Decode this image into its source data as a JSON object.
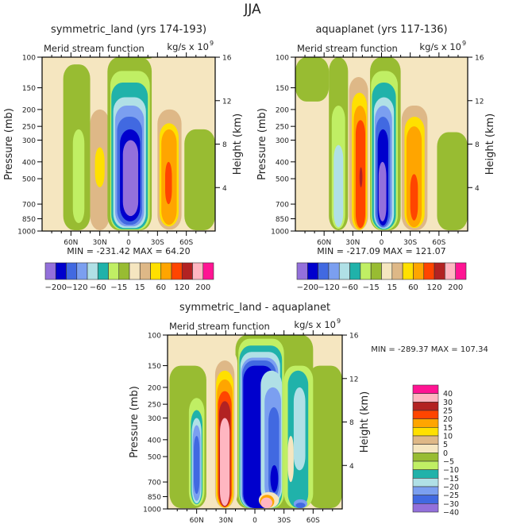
{
  "chart_data": [
    {
      "type": "heatmap",
      "panel": "top-left",
      "title": "symmetric_land (yrs 174-193)",
      "left_string": "Merid stream function",
      "right_string": "kg/s x 10",
      "right_string_exponent": "9",
      "ylabel": "Pressure (mb)",
      "ylabel_right": "Height (km)",
      "yticks": [
        "100",
        "150",
        "200",
        "250",
        "300",
        "400",
        "500",
        "700",
        "850",
        "1000"
      ],
      "yticks_right": [
        "16",
        "12",
        "8",
        "4"
      ],
      "xticks": [
        "60N",
        "30N",
        "0",
        "30S",
        "60S"
      ],
      "xlim": [
        90,
        -90
      ],
      "ylim": [
        1000,
        100
      ],
      "stats": "MIN = -231.42   MAX = 64.20",
      "levels": [
        -200,
        -160,
        -120,
        -90,
        -60,
        -30,
        -15,
        -5,
        5,
        15,
        30,
        60,
        90,
        120,
        160,
        200
      ],
      "labelbar_labels": [
        "-200",
        "-120",
        "-60",
        "-15",
        "15",
        "60",
        "120",
        "200"
      ],
      "cells": [
        {
          "lat": [
            68,
            40
          ],
          "p": [
            110,
            990
          ],
          "v": -5
        },
        {
          "lat": [
            58,
            46
          ],
          "p": [
            260,
            900
          ],
          "v": -15
        },
        {
          "lat": [
            40,
            20
          ],
          "p": [
            200,
            990
          ],
          "v": 15
        },
        {
          "lat": [
            35,
            25
          ],
          "p": [
            330,
            560
          ],
          "v": 30
        },
        {
          "lat": [
            -13,
            -24
          ],
          "p": [
            100,
            100
          ],
          "v": -5
        },
        {
          "lat": [
            22,
            -24
          ],
          "p": [
            100,
            990
          ],
          "v": -5
        },
        {
          "lat": [
            19,
            -22
          ],
          "p": [
            120,
            985
          ],
          "v": -15
        },
        {
          "lat": [
            18,
            -20
          ],
          "p": [
            140,
            975
          ],
          "v": -30
        },
        {
          "lat": [
            16,
            -18
          ],
          "p": [
            170,
            960
          ],
          "v": -60
        },
        {
          "lat": [
            14,
            -16
          ],
          "p": [
            190,
            940
          ],
          "v": -90
        },
        {
          "lat": [
            12,
            -14
          ],
          "p": [
            220,
            920
          ],
          "v": -120
        },
        {
          "lat": [
            9,
            -12
          ],
          "p": [
            260,
            880
          ],
          "v": -160
        },
        {
          "lat": [
            6,
            -10
          ],
          "p": [
            300,
            820
          ],
          "v": -200
        },
        {
          "lat": [
            -30,
            -55
          ],
          "p": [
            200,
            980
          ],
          "v": 15
        },
        {
          "lat": [
            -32,
            -52
          ],
          "p": [
            240,
            940
          ],
          "v": 30
        },
        {
          "lat": [
            -34,
            -50
          ],
          "p": [
            260,
            920
          ],
          "v": 60
        },
        {
          "lat": [
            -38,
            -45
          ],
          "p": [
            400,
            700
          ],
          "v": 90
        },
        {
          "lat": [
            -58,
            -90
          ],
          "p": [
            260,
            990
          ],
          "v": -5
        }
      ]
    },
    {
      "type": "heatmap",
      "panel": "top-right",
      "title": "aquaplanet (yrs 117-136)",
      "left_string": "Merid stream function",
      "right_string": "kg/s x 10",
      "right_string_exponent": "9",
      "ylabel": "Pressure (mb)",
      "ylabel_right": "Height (km)",
      "yticks": [
        "100",
        "150",
        "200",
        "250",
        "300",
        "400",
        "500",
        "700",
        "850",
        "1000"
      ],
      "yticks_right": [
        "16",
        "12",
        "8",
        "4"
      ],
      "xticks": [
        "60N",
        "30N",
        "0",
        "30S",
        "60S"
      ],
      "xlim": [
        90,
        -90
      ],
      "ylim": [
        1000,
        100
      ],
      "stats": "MIN = -217.09   MAX = 121.07",
      "levels": [
        -200,
        -160,
        -120,
        -90,
        -60,
        -30,
        -15,
        -5,
        5,
        15,
        30,
        60,
        90,
        120,
        160,
        200
      ],
      "labelbar_labels": [
        "-200",
        "-120",
        "-60",
        "-15",
        "15",
        "60",
        "120",
        "200"
      ],
      "cells": [
        {
          "lat": [
            90,
            55
          ],
          "p": [
            100,
            180
          ],
          "v": -5
        },
        {
          "lat": [
            55,
            35
          ],
          "p": [
            100,
            990
          ],
          "v": -5
        },
        {
          "lat": [
            52,
            38
          ],
          "p": [
            190,
            970
          ],
          "v": -15
        },
        {
          "lat": [
            50,
            40
          ],
          "p": [
            320,
            950
          ],
          "v": -60
        },
        {
          "lat": [
            34,
            14
          ],
          "p": [
            130,
            990
          ],
          "v": 15
        },
        {
          "lat": [
            31,
            15
          ],
          "p": [
            160,
            985
          ],
          "v": 30
        },
        {
          "lat": [
            29,
            16
          ],
          "p": [
            190,
            975
          ],
          "v": 60
        },
        {
          "lat": [
            27,
            17
          ],
          "p": [
            230,
            960
          ],
          "v": 90
        },
        {
          "lat": [
            23,
            20
          ],
          "p": [
            430,
            560
          ],
          "v": 120
        },
        {
          "lat": [
            12,
            -20
          ],
          "p": [
            100,
            990
          ],
          "v": -5
        },
        {
          "lat": [
            11,
            -17
          ],
          "p": [
            120,
            985
          ],
          "v": -15
        },
        {
          "lat": [
            10,
            -15
          ],
          "p": [
            140,
            980
          ],
          "v": -30
        },
        {
          "lat": [
            8,
            -13
          ],
          "p": [
            170,
            970
          ],
          "v": -60
        },
        {
          "lat": [
            7,
            -11
          ],
          "p": [
            190,
            960
          ],
          "v": -90
        },
        {
          "lat": [
            6,
            -9
          ],
          "p": [
            220,
            950
          ],
          "v": -120
        },
        {
          "lat": [
            4,
            -7
          ],
          "p": [
            260,
            930
          ],
          "v": -160
        },
        {
          "lat": [
            3,
            -5
          ],
          "p": [
            400,
            880
          ],
          "v": -200
        },
        {
          "lat": [
            -21,
            -48
          ],
          "p": [
            190,
            990
          ],
          "v": 15
        },
        {
          "lat": [
            -24,
            -45
          ],
          "p": [
            220,
            960
          ],
          "v": 30
        },
        {
          "lat": [
            -26,
            -42
          ],
          "p": [
            250,
            950
          ],
          "v": 60
        },
        {
          "lat": [
            -30,
            -38
          ],
          "p": [
            470,
            870
          ],
          "v": 90
        },
        {
          "lat": [
            -58,
            -90
          ],
          "p": [
            270,
            990
          ],
          "v": -5
        }
      ]
    },
    {
      "type": "heatmap",
      "panel": "bottom",
      "title": "symmetric_land - aquaplanet",
      "left_string": "Merid stream function",
      "right_string": "kg/s x 10",
      "right_string_exponent": "9",
      "ylabel": "Pressure (mb)",
      "ylabel_right": "Height (km)",
      "yticks": [
        "100",
        "150",
        "200",
        "250",
        "300",
        "400",
        "500",
        "700",
        "850",
        "1000"
      ],
      "yticks_right": [
        "16",
        "12",
        "8",
        "4"
      ],
      "xticks": [
        "60N",
        "30N",
        "0",
        "30S",
        "60S"
      ],
      "xlim": [
        90,
        -90
      ],
      "ylim": [
        1000,
        100
      ],
      "stats": "MIN = -289.37   MAX = 107.34",
      "levels": [
        -40,
        -30,
        -25,
        -20,
        -15,
        -10,
        -5,
        0,
        5,
        10,
        15,
        20,
        25,
        30,
        40
      ],
      "labelbar_labels": [
        "40",
        "30",
        "25",
        "20",
        "15",
        "10",
        "5",
        "0",
        "-5",
        "-10",
        "-15",
        "-20",
        "-25",
        "-30",
        "-40"
      ],
      "cells": [
        {
          "lat": [
            88,
            50
          ],
          "p": [
            150,
            990
          ],
          "v": -2
        },
        {
          "lat": [
            -55,
            -90
          ],
          "p": [
            150,
            990
          ],
          "v": -2
        },
        {
          "lat": [
            20,
            -60
          ],
          "p": [
            100,
            990
          ],
          "v": -2
        },
        {
          "lat": [
            68,
            52
          ],
          "p": [
            230,
            960
          ],
          "v": -7
        },
        {
          "lat": [
            66,
            54
          ],
          "p": [
            270,
            940
          ],
          "v": -12
        },
        {
          "lat": [
            65,
            55
          ],
          "p": [
            300,
            930
          ],
          "v": -17
        },
        {
          "lat": [
            64,
            56
          ],
          "p": [
            330,
            900
          ],
          "v": -22
        },
        {
          "lat": [
            63,
            57
          ],
          "p": [
            380,
            820
          ],
          "v": -27
        },
        {
          "lat": [
            46,
            18
          ],
          "p": [
            120,
            990
          ],
          "v": 2
        },
        {
          "lat": [
            41,
            21
          ],
          "p": [
            140,
            990
          ],
          "v": 7
        },
        {
          "lat": [
            40,
            22
          ],
          "p": [
            160,
            985
          ],
          "v": 12
        },
        {
          "lat": [
            39,
            23
          ],
          "p": [
            180,
            980
          ],
          "v": 17
        },
        {
          "lat": [
            38,
            24
          ],
          "p": [
            210,
            975
          ],
          "v": 22
        },
        {
          "lat": [
            37,
            25
          ],
          "p": [
            240,
            970
          ],
          "v": 27
        },
        {
          "lat": [
            36,
            26
          ],
          "p": [
            300,
            960
          ],
          "v": 35
        },
        {
          "lat": [
            17,
            -30
          ],
          "p": [
            105,
            990
          ],
          "v": -7
        },
        {
          "lat": [
            16,
            -28
          ],
          "p": [
            115,
            990
          ],
          "v": -12
        },
        {
          "lat": [
            15,
            -26
          ],
          "p": [
            125,
            990
          ],
          "v": -17
        },
        {
          "lat": [
            14,
            -24
          ],
          "p": [
            135,
            990
          ],
          "v": -22
        },
        {
          "lat": [
            13,
            -22
          ],
          "p": [
            140,
            990
          ],
          "v": -27
        },
        {
          "lat": [
            12,
            -20
          ],
          "p": [
            150,
            990
          ],
          "v": -35
        },
        {
          "lat": [
            -6,
            -28
          ],
          "p": [
            160,
            930
          ],
          "v": -17
        },
        {
          "lat": [
            -10,
            -27
          ],
          "p": [
            200,
            900
          ],
          "v": -22
        },
        {
          "lat": [
            -14,
            -25
          ],
          "p": [
            260,
            860
          ],
          "v": -27
        },
        {
          "lat": [
            -16,
            -24
          ],
          "p": [
            560,
            800
          ],
          "v": -35
        },
        {
          "lat": [
            -4,
            -25
          ],
          "p": [
            800,
            990
          ],
          "v": 2
        },
        {
          "lat": [
            -5,
            -20
          ],
          "p": [
            830,
            990
          ],
          "v": 17
        },
        {
          "lat": [
            -6,
            -18
          ],
          "p": [
            860,
            990
          ],
          "v": 35
        },
        {
          "lat": [
            -30,
            -60
          ],
          "p": [
            150,
            990
          ],
          "v": -7
        },
        {
          "lat": [
            -34,
            -55
          ],
          "p": [
            160,
            990
          ],
          "v": -12
        },
        {
          "lat": [
            -40,
            -52
          ],
          "p": [
            200,
            600
          ],
          "v": -17
        },
        {
          "lat": [
            -40,
            -54
          ],
          "p": [
            880,
            990
          ],
          "v": -22
        },
        {
          "lat": [
            -42,
            -52
          ],
          "p": [
            920,
            990
          ],
          "v": -27
        },
        {
          "lat": [
            -34,
            -40
          ],
          "p": [
            380,
            700
          ],
          "v": 2
        }
      ]
    }
  ],
  "figure": {
    "main_title": "JJA"
  },
  "colormaps": {
    "full": [
      "#9370db",
      "#0000cd",
      "#4169e1",
      "#7b9ff0",
      "#b0e0e6",
      "#20b2aa",
      "#c0ef64",
      "#98bc32",
      "#f5e6c0",
      "#deb887",
      "#ffe000",
      "#ffa500",
      "#ff4500",
      "#b22222",
      "#ffb6c1",
      "#ff1493"
    ],
    "diff": [
      "#9370db",
      "#0000cd",
      "#4169e1",
      "#7b9ff0",
      "#b0e0e6",
      "#20b2aa",
      "#c0ef64",
      "#98bc32",
      "#f5e6c0",
      "#deb887",
      "#ffe000",
      "#ffa500",
      "#ff4500",
      "#b22222",
      "#ffb6c1",
      "#ff1493"
    ]
  }
}
